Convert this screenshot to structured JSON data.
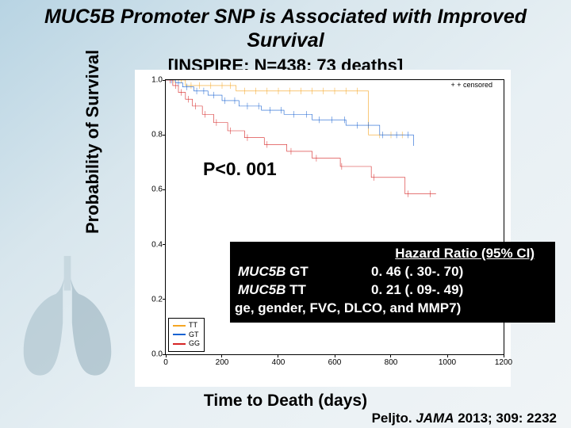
{
  "title": {
    "gene": "MUC5B",
    "rest": " Promoter SNP is Associated with Improved Survival",
    "fontsize": 25
  },
  "subtitle": "[INSPIRE; N=438; 73 deaths]",
  "ylabel": "Probability of Survival",
  "xlabel": "Time to Death (days)",
  "citation": {
    "author": "Peljto.  ",
    "journal": "JAMA",
    "rest": " 2013; 309: 2232"
  },
  "pvalue": "P<0. 001",
  "censored_label": "+  censored",
  "hr_box": {
    "header": "Hazard Ratio (95% CI)",
    "rows": [
      {
        "gene": "MUC5B",
        "geno": " GT",
        "value": "0. 46 (. 30-. 70)"
      },
      {
        "gene": "MUC5B",
        "geno": " TT",
        "value": "0. 21 (. 09-. 49)"
      }
    ],
    "adjust": "ge, gender, FVC, DLCO, and MMP7)"
  },
  "chart": {
    "type": "kaplan-meier",
    "background_color": "#ffffff",
    "border_color": "#000000",
    "xlim": [
      0,
      1200
    ],
    "ylim": [
      0,
      1
    ],
    "xticks": [
      0,
      200,
      400,
      600,
      800,
      1000,
      1200
    ],
    "yticks": [
      0.0,
      0.2,
      0.4,
      0.6,
      0.8,
      1.0
    ],
    "tick_fontsize": 10,
    "legend": {
      "position": "bottom-left",
      "items": [
        {
          "label": "TT",
          "color": "#f5a623"
        },
        {
          "label": "GT",
          "color": "#1862d1"
        },
        {
          "label": "GG",
          "color": "#d62424"
        }
      ]
    },
    "series": {
      "TT": {
        "color": "#f5a623",
        "steps": [
          [
            0,
            1.0
          ],
          [
            70,
            1.0
          ],
          [
            70,
            0.98
          ],
          [
            250,
            0.98
          ],
          [
            250,
            0.96
          ],
          [
            720,
            0.96
          ],
          [
            720,
            0.8
          ],
          [
            850,
            0.8
          ]
        ],
        "censor_x": [
          30,
          55,
          90,
          120,
          160,
          200,
          230,
          280,
          320,
          360,
          400,
          440,
          480,
          520,
          560,
          600,
          640,
          680,
          760,
          800,
          840
        ]
      },
      "GT": {
        "color": "#1862d1",
        "steps": [
          [
            0,
            1.0
          ],
          [
            35,
            1.0
          ],
          [
            35,
            0.99
          ],
          [
            60,
            0.99
          ],
          [
            60,
            0.975
          ],
          [
            100,
            0.975
          ],
          [
            100,
            0.96
          ],
          [
            150,
            0.96
          ],
          [
            150,
            0.945
          ],
          [
            200,
            0.945
          ],
          [
            200,
            0.925
          ],
          [
            260,
            0.925
          ],
          [
            260,
            0.905
          ],
          [
            340,
            0.905
          ],
          [
            340,
            0.89
          ],
          [
            420,
            0.89
          ],
          [
            420,
            0.875
          ],
          [
            520,
            0.875
          ],
          [
            520,
            0.855
          ],
          [
            640,
            0.855
          ],
          [
            640,
            0.835
          ],
          [
            760,
            0.835
          ],
          [
            760,
            0.8
          ],
          [
            880,
            0.8
          ],
          [
            880,
            0.76
          ]
        ],
        "censor_x": [
          20,
          45,
          75,
          110,
          135,
          170,
          210,
          245,
          290,
          330,
          370,
          410,
          455,
          500,
          545,
          590,
          635,
          680,
          720,
          770,
          820,
          860
        ]
      },
      "GG": {
        "color": "#d62424",
        "steps": [
          [
            0,
            1.0
          ],
          [
            25,
            1.0
          ],
          [
            25,
            0.98
          ],
          [
            45,
            0.98
          ],
          [
            45,
            0.955
          ],
          [
            70,
            0.955
          ],
          [
            70,
            0.93
          ],
          [
            95,
            0.93
          ],
          [
            95,
            0.905
          ],
          [
            130,
            0.905
          ],
          [
            130,
            0.875
          ],
          [
            170,
            0.875
          ],
          [
            170,
            0.845
          ],
          [
            220,
            0.845
          ],
          [
            220,
            0.815
          ],
          [
            280,
            0.815
          ],
          [
            280,
            0.79
          ],
          [
            350,
            0.79
          ],
          [
            350,
            0.765
          ],
          [
            430,
            0.765
          ],
          [
            430,
            0.74
          ],
          [
            520,
            0.74
          ],
          [
            520,
            0.715
          ],
          [
            620,
            0.715
          ],
          [
            620,
            0.685
          ],
          [
            730,
            0.685
          ],
          [
            730,
            0.645
          ],
          [
            850,
            0.645
          ],
          [
            850,
            0.585
          ],
          [
            960,
            0.585
          ]
        ],
        "censor_x": [
          15,
          35,
          55,
          80,
          105,
          140,
          180,
          230,
          290,
          360,
          445,
          535,
          625,
          740,
          860,
          940
        ]
      }
    }
  }
}
